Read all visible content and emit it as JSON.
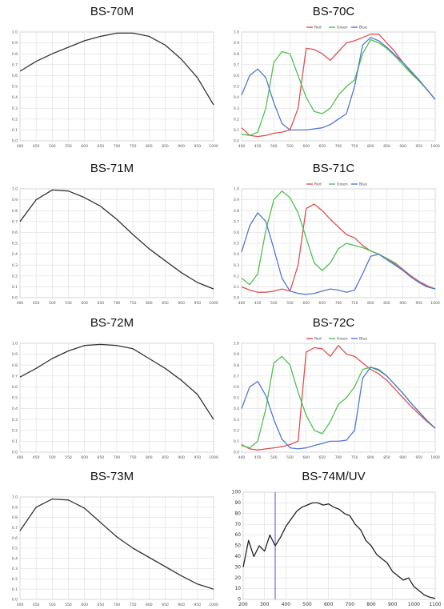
{
  "charts": [
    {
      "id": "bs70m",
      "type": "line",
      "title": "BS-70M",
      "x": [
        400,
        450,
        500,
        550,
        600,
        650,
        700,
        750,
        800,
        850,
        900,
        950,
        1000
      ],
      "xlim": [
        400,
        1000
      ],
      "ylim": [
        0,
        1
      ],
      "xticks": [
        "400",
        "450",
        "500",
        "550",
        "600",
        "650",
        "700",
        "750",
        "800",
        "850",
        "900",
        "950",
        "1000"
      ],
      "yticks": [
        "0.0",
        "0.1",
        "0.2",
        "0.3",
        "0.4",
        "0.5",
        "0.6",
        "0.7",
        "0.8",
        "0.9",
        "1.0"
      ],
      "series": [
        {
          "color": "#333333",
          "values": [
            0.64,
            0.73,
            0.8,
            0.86,
            0.92,
            0.96,
            0.99,
            0.99,
            0.96,
            0.88,
            0.75,
            0.58,
            0.33
          ]
        }
      ]
    },
    {
      "id": "bs70c",
      "type": "line",
      "title": "BS-70C",
      "x": [
        400,
        425,
        450,
        475,
        500,
        525,
        550,
        575,
        600,
        625,
        650,
        675,
        700,
        725,
        750,
        775,
        800,
        825,
        850,
        875,
        900,
        925,
        950,
        975,
        1000
      ],
      "xlim": [
        400,
        1000
      ],
      "ylim": [
        0,
        1
      ],
      "xticks": [
        "400",
        "450",
        "500",
        "550",
        "600",
        "650",
        "700",
        "750",
        "800",
        "850",
        "900",
        "950",
        "1000"
      ],
      "yticks": [
        "0.0",
        "0.1",
        "0.2",
        "0.3",
        "0.4",
        "0.5",
        "0.6",
        "0.7",
        "0.8",
        "0.9",
        "1.0"
      ],
      "legend": [
        "Red",
        "Green",
        "Blue"
      ],
      "series": [
        {
          "name": "Red",
          "color": "#e05050",
          "values": [
            0.12,
            0.05,
            0.04,
            0.05,
            0.07,
            0.08,
            0.1,
            0.3,
            0.85,
            0.84,
            0.8,
            0.74,
            0.82,
            0.9,
            0.92,
            0.95,
            0.98,
            0.98,
            0.9,
            0.82,
            0.72,
            0.63,
            0.55,
            0.47,
            0.38
          ]
        },
        {
          "name": "Green",
          "color": "#50c050",
          "values": [
            0.06,
            0.05,
            0.08,
            0.3,
            0.72,
            0.82,
            0.8,
            0.6,
            0.4,
            0.27,
            0.25,
            0.3,
            0.42,
            0.5,
            0.56,
            0.8,
            0.93,
            0.9,
            0.85,
            0.78,
            0.7,
            0.62,
            0.55,
            0.47,
            0.38
          ]
        },
        {
          "name": "Blue",
          "color": "#5078d0",
          "values": [
            0.42,
            0.6,
            0.66,
            0.58,
            0.35,
            0.16,
            0.1,
            0.1,
            0.1,
            0.11,
            0.12,
            0.15,
            0.2,
            0.25,
            0.5,
            0.88,
            0.95,
            0.92,
            0.86,
            0.79,
            0.72,
            0.64,
            0.56,
            0.47,
            0.38
          ]
        }
      ]
    },
    {
      "id": "bs71m",
      "type": "line",
      "title": "BS-71M",
      "x": [
        400,
        450,
        500,
        550,
        600,
        650,
        700,
        750,
        800,
        850,
        900,
        950,
        1000
      ],
      "xlim": [
        400,
        1000
      ],
      "ylim": [
        0,
        1
      ],
      "xticks": [
        "400",
        "450",
        "500",
        "550",
        "600",
        "650",
        "700",
        "750",
        "800",
        "850",
        "900",
        "950",
        "1000"
      ],
      "yticks": [
        "0.0",
        "0.1",
        "0.2",
        "0.3",
        "0.4",
        "0.5",
        "0.6",
        "0.7",
        "0.8",
        "0.9",
        "1.0"
      ],
      "series": [
        {
          "color": "#333333",
          "values": [
            0.7,
            0.9,
            0.99,
            0.98,
            0.92,
            0.84,
            0.72,
            0.58,
            0.45,
            0.34,
            0.23,
            0.14,
            0.08
          ]
        }
      ]
    },
    {
      "id": "bs71c",
      "type": "line",
      "title": "BS-71C",
      "x": [
        400,
        425,
        450,
        475,
        500,
        525,
        550,
        575,
        600,
        625,
        650,
        675,
        700,
        725,
        750,
        775,
        800,
        825,
        850,
        875,
        900,
        925,
        950,
        975,
        1000
      ],
      "xlim": [
        400,
        1000
      ],
      "ylim": [
        0,
        1
      ],
      "xticks": [
        "400",
        "450",
        "500",
        "550",
        "600",
        "650",
        "700",
        "750",
        "800",
        "850",
        "900",
        "950",
        "1000"
      ],
      "yticks": [
        "0.0",
        "0.1",
        "0.2",
        "0.3",
        "0.4",
        "0.5",
        "0.6",
        "0.7",
        "0.8",
        "0.9",
        "1.0"
      ],
      "legend": [
        "Red",
        "Green",
        "Blue"
      ],
      "series": [
        {
          "name": "Red",
          "color": "#e05050",
          "values": [
            0.1,
            0.07,
            0.05,
            0.05,
            0.06,
            0.08,
            0.06,
            0.3,
            0.82,
            0.86,
            0.8,
            0.72,
            0.65,
            0.58,
            0.55,
            0.48,
            0.43,
            0.4,
            0.36,
            0.32,
            0.26,
            0.2,
            0.15,
            0.11,
            0.08
          ]
        },
        {
          "name": "Green",
          "color": "#50c050",
          "values": [
            0.18,
            0.12,
            0.22,
            0.62,
            0.9,
            0.98,
            0.92,
            0.78,
            0.55,
            0.32,
            0.25,
            0.32,
            0.45,
            0.5,
            0.48,
            0.46,
            0.43,
            0.4,
            0.36,
            0.31,
            0.25,
            0.19,
            0.14,
            0.1,
            0.08
          ]
        },
        {
          "name": "Blue",
          "color": "#5078d0",
          "values": [
            0.42,
            0.66,
            0.78,
            0.7,
            0.45,
            0.18,
            0.06,
            0.04,
            0.03,
            0.04,
            0.06,
            0.08,
            0.07,
            0.05,
            0.07,
            0.22,
            0.38,
            0.4,
            0.35,
            0.3,
            0.25,
            0.19,
            0.14,
            0.1,
            0.08
          ]
        }
      ]
    },
    {
      "id": "bs72m",
      "type": "line",
      "title": "BS-72M",
      "x": [
        400,
        450,
        500,
        550,
        600,
        650,
        700,
        750,
        800,
        850,
        900,
        950,
        1000
      ],
      "xlim": [
        400,
        1000
      ],
      "ylim": [
        0,
        1
      ],
      "xticks": [
        "400",
        "450",
        "500",
        "550",
        "600",
        "650",
        "700",
        "750",
        "800",
        "850",
        "900",
        "950",
        "1000"
      ],
      "yticks": [
        "0.0",
        "0.1",
        "0.2",
        "0.3",
        "0.4",
        "0.5",
        "0.6",
        "0.7",
        "0.8",
        "0.9",
        "1.0"
      ],
      "series": [
        {
          "color": "#333333",
          "values": [
            0.69,
            0.77,
            0.86,
            0.93,
            0.98,
            0.99,
            0.98,
            0.95,
            0.86,
            0.77,
            0.66,
            0.53,
            0.3
          ]
        }
      ]
    },
    {
      "id": "bs72c",
      "type": "line",
      "title": "BS-72C",
      "x": [
        400,
        425,
        450,
        475,
        500,
        525,
        550,
        575,
        600,
        625,
        650,
        675,
        700,
        725,
        750,
        775,
        800,
        825,
        850,
        875,
        900,
        925,
        950,
        975,
        1000
      ],
      "xlim": [
        400,
        1000
      ],
      "ylim": [
        0,
        1
      ],
      "xticks": [
        "400",
        "450",
        "500",
        "550",
        "600",
        "650",
        "700",
        "750",
        "800",
        "850",
        "900",
        "950",
        "1000"
      ],
      "yticks": [
        "0.0",
        "0.1",
        "0.2",
        "0.3",
        "0.4",
        "0.5",
        "0.6",
        "0.7",
        "0.8",
        "0.9",
        "1.0"
      ],
      "legend": [
        "Red",
        "Green",
        "Blue"
      ],
      "series": [
        {
          "name": "Red",
          "color": "#e05050",
          "values": [
            0.07,
            0.03,
            0.02,
            0.03,
            0.04,
            0.05,
            0.07,
            0.1,
            0.92,
            0.96,
            0.95,
            0.88,
            0.98,
            0.9,
            0.88,
            0.82,
            0.76,
            0.72,
            0.66,
            0.58,
            0.5,
            0.42,
            0.35,
            0.28,
            0.22
          ]
        },
        {
          "name": "Green",
          "color": "#50c050",
          "values": [
            0.06,
            0.04,
            0.1,
            0.4,
            0.82,
            0.88,
            0.8,
            0.55,
            0.34,
            0.2,
            0.17,
            0.28,
            0.44,
            0.5,
            0.6,
            0.76,
            0.78,
            0.75,
            0.7,
            0.62,
            0.54,
            0.45,
            0.37,
            0.29,
            0.22
          ]
        },
        {
          "name": "Blue",
          "color": "#5078d0",
          "values": [
            0.4,
            0.6,
            0.65,
            0.52,
            0.3,
            0.12,
            0.04,
            0.03,
            0.04,
            0.06,
            0.08,
            0.1,
            0.1,
            0.11,
            0.2,
            0.68,
            0.78,
            0.76,
            0.7,
            0.62,
            0.54,
            0.45,
            0.37,
            0.29,
            0.22
          ]
        }
      ]
    },
    {
      "id": "bs73m",
      "type": "line",
      "title": "BS-73M",
      "x": [
        400,
        450,
        500,
        550,
        600,
        650,
        700,
        750,
        800,
        850,
        900,
        950,
        1000
      ],
      "xlim": [
        400,
        1000
      ],
      "ylim": [
        0,
        1
      ],
      "xticks": [
        "400",
        "450",
        "500",
        "550",
        "600",
        "650",
        "700",
        "750",
        "800",
        "850",
        "900",
        "950",
        "1000"
      ],
      "yticks": [
        "0.0",
        "0.1",
        "0.2",
        "0.3",
        "0.4",
        "0.5",
        "0.6",
        "0.7",
        "0.8",
        "0.9",
        "1.0"
      ],
      "series": [
        {
          "color": "#333333",
          "values": [
            0.67,
            0.9,
            0.98,
            0.97,
            0.89,
            0.75,
            0.61,
            0.5,
            0.41,
            0.32,
            0.23,
            0.15,
            0.1
          ]
        }
      ]
    },
    {
      "id": "bs74m",
      "type": "line",
      "title": "BS-74M/UV",
      "x": [
        200,
        225,
        250,
        275,
        300,
        325,
        350,
        375,
        400,
        425,
        450,
        475,
        500,
        525,
        550,
        575,
        600,
        625,
        650,
        675,
        700,
        725,
        750,
        775,
        800,
        825,
        850,
        875,
        900,
        925,
        950,
        975,
        1000,
        1025,
        1050,
        1075,
        1100
      ],
      "xlim": [
        200,
        1100
      ],
      "ylim": [
        0,
        100
      ],
      "xticks": [
        "200",
        "300",
        "400",
        "500",
        "600",
        "700",
        "800",
        "900",
        "1000",
        "1100"
      ],
      "yticks": [
        "0",
        "10",
        "20",
        "30",
        "40",
        "50",
        "60",
        "70",
        "80",
        "90",
        "100"
      ],
      "marker_x": 350,
      "series": [
        {
          "color": "#222222",
          "values": [
            30,
            55,
            40,
            50,
            45,
            60,
            50,
            58,
            68,
            75,
            82,
            86,
            88,
            90,
            90,
            88,
            89,
            86,
            84,
            80,
            78,
            70,
            65,
            55,
            50,
            42,
            38,
            34,
            26,
            22,
            18,
            20,
            12,
            8,
            4,
            2,
            1
          ]
        }
      ]
    }
  ]
}
